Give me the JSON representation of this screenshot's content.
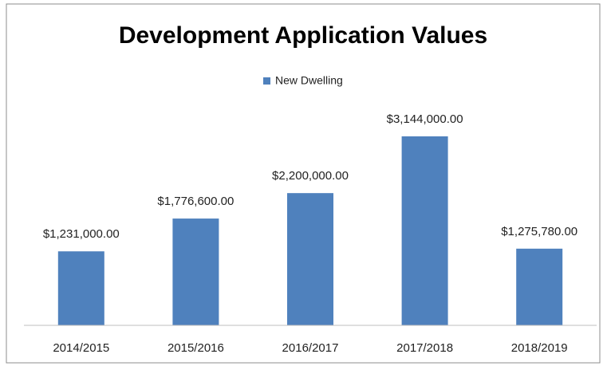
{
  "chart_data": {
    "type": "bar",
    "title": "Development Application Values",
    "categories": [
      "2014/2015",
      "2015/2016",
      "2016/2017",
      "2017/2018",
      "2018/2019"
    ],
    "series": [
      {
        "name": "New Dwelling",
        "color": "#4f81bd",
        "values": [
          1231000,
          1776600,
          2200000,
          3144000,
          1275780
        ],
        "value_labels": [
          "$1,231,000.00",
          "$1,776,600.00",
          "$2,200,000.00",
          "$3,144,000.00",
          "$1,275,780.00"
        ]
      }
    ],
    "legend": "top"
  }
}
